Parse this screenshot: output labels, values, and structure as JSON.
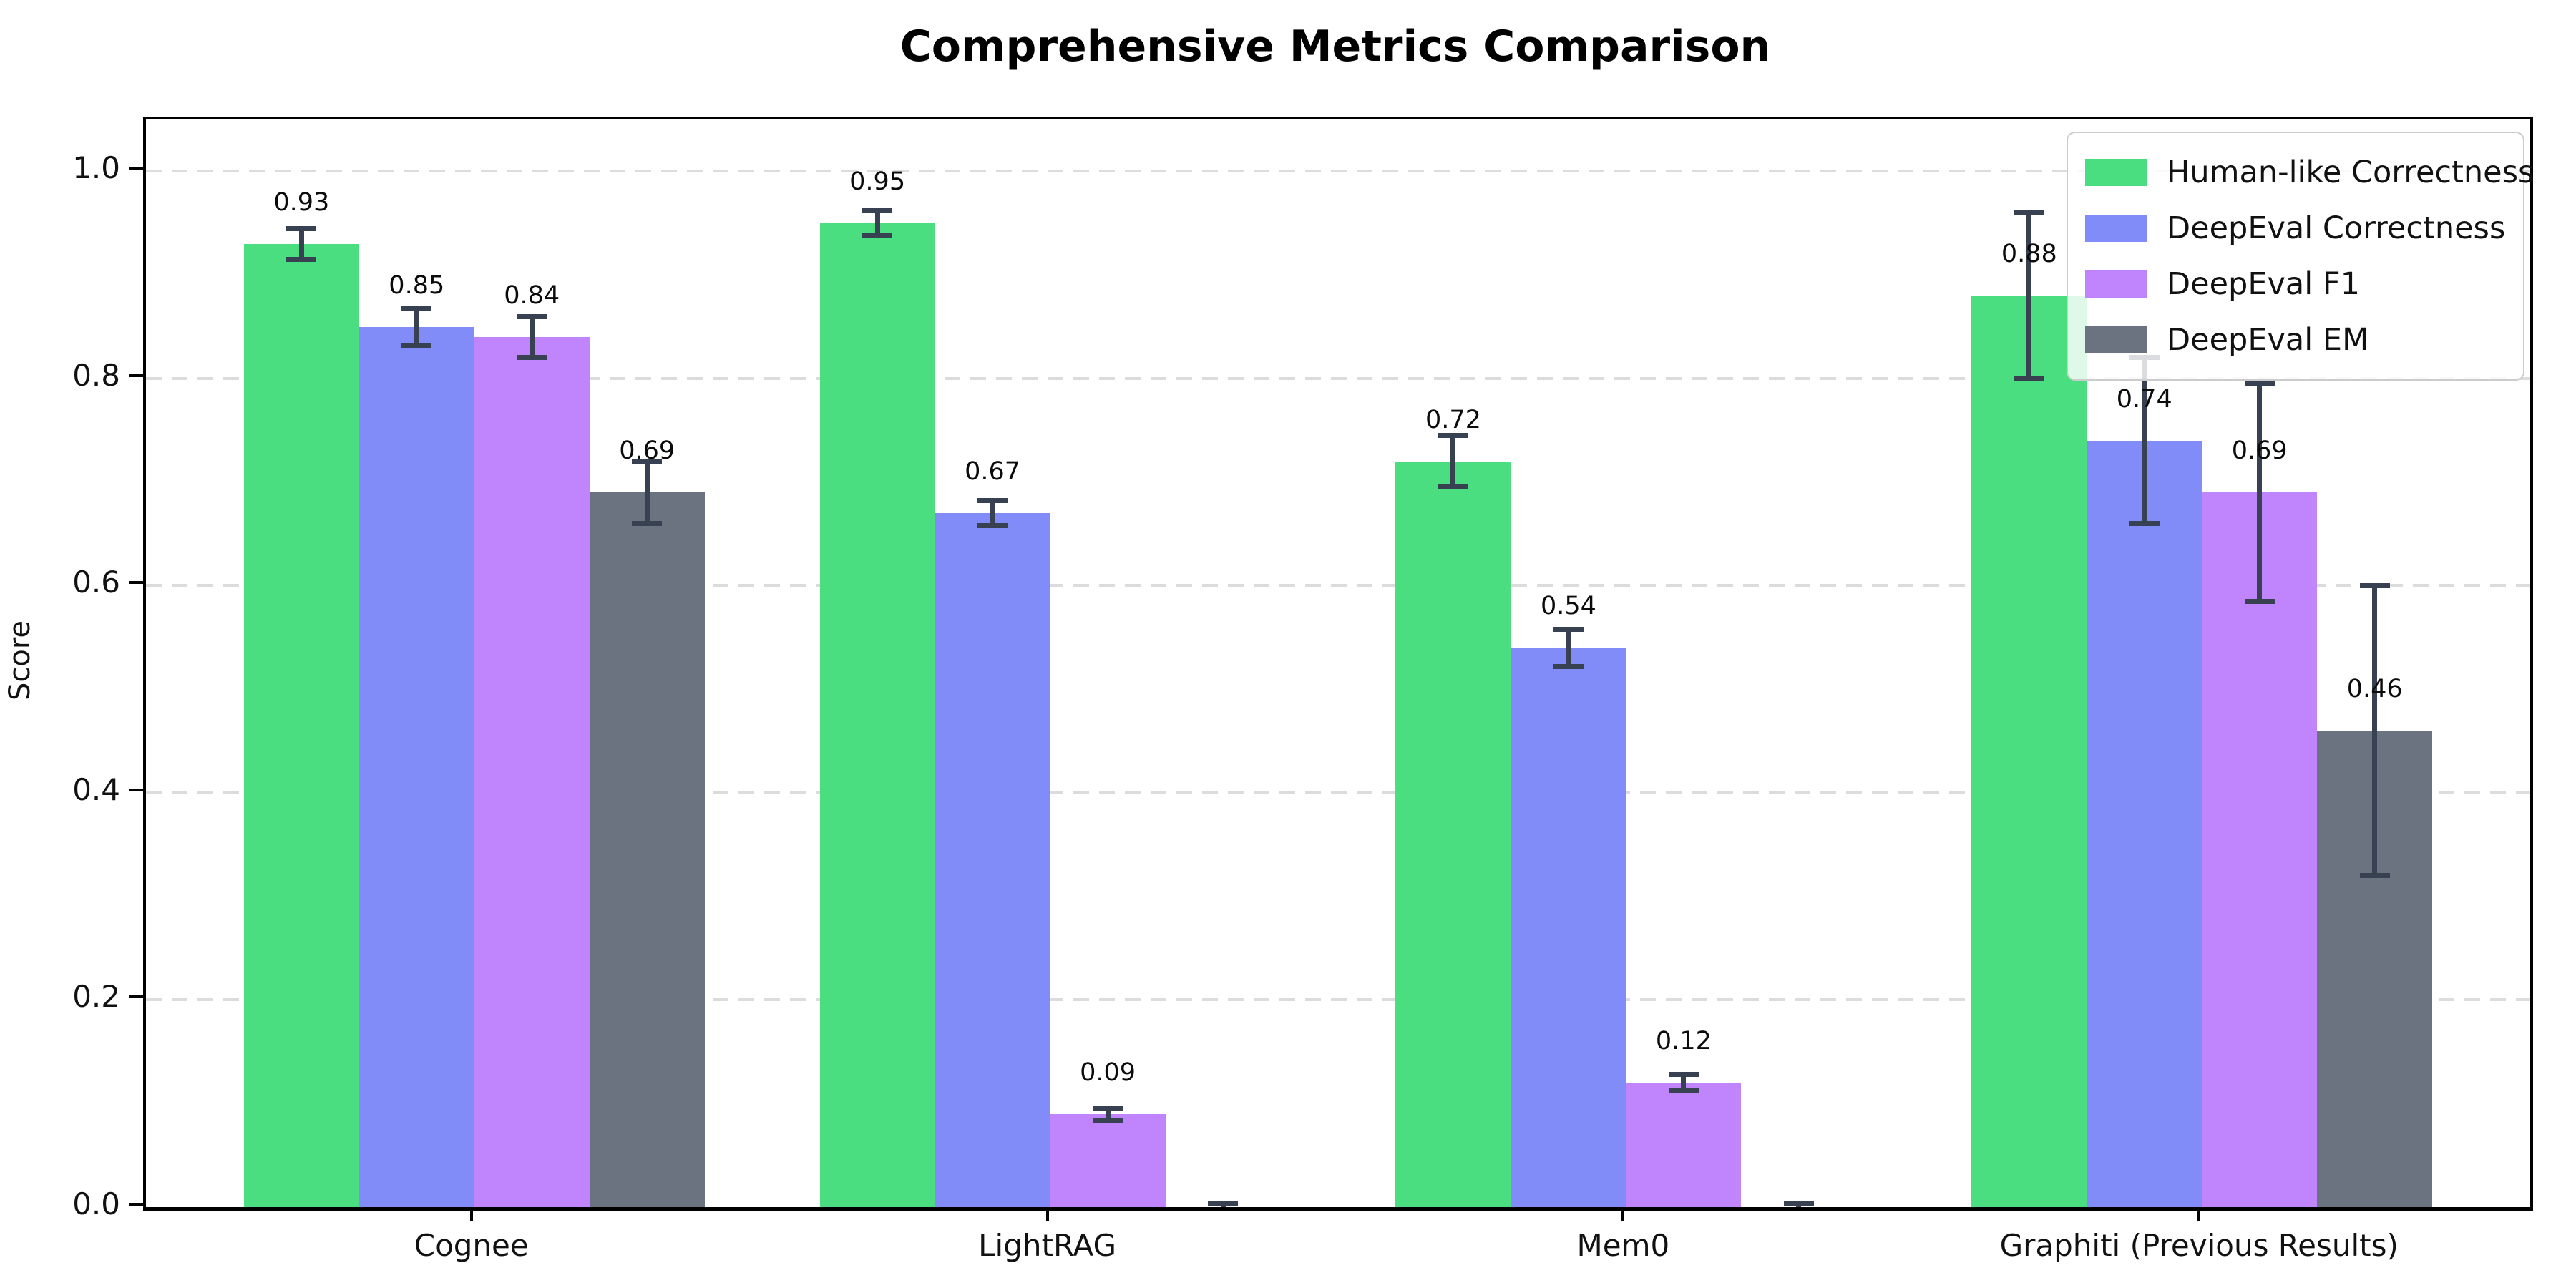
{
  "chart_data": {
    "type": "bar",
    "title": "Comprehensive Metrics Comparison",
    "xlabel": "",
    "ylabel": "Score",
    "ylim": [
      0,
      1.05
    ],
    "yticks": [
      0.0,
      0.2,
      0.4,
      0.6,
      0.8,
      1.0
    ],
    "ytick_labels": [
      "0.0",
      "0.2",
      "0.4",
      "0.6",
      "0.8",
      "1.0"
    ],
    "grid": "horizontal-dashed",
    "legend_position": "upper right",
    "categories": [
      "Cognee",
      "LightRAG",
      "Mem0",
      "Graphiti (Previous Results)"
    ],
    "series": [
      {
        "name": "Human-like Correctness",
        "color": "#4ade80",
        "values": [
          0.93,
          0.95,
          0.72,
          0.88
        ],
        "errors": [
          0.015,
          0.012,
          0.025,
          0.08
        ],
        "labels": [
          "0.93",
          "0.95",
          "0.72",
          "0.88"
        ]
      },
      {
        "name": "DeepEval Correctness",
        "color": "#818cf8",
        "values": [
          0.85,
          0.67,
          0.54,
          0.74
        ],
        "errors": [
          0.018,
          0.012,
          0.018,
          0.08
        ],
        "labels": [
          "0.85",
          "0.67",
          "0.54",
          "0.74"
        ]
      },
      {
        "name": "DeepEval F1",
        "color": "#c084fc",
        "values": [
          0.84,
          0.09,
          0.12,
          0.69
        ],
        "errors": [
          0.02,
          0.006,
          0.008,
          0.105
        ],
        "labels": [
          "0.84",
          "0.09",
          "0.12",
          "0.69"
        ]
      },
      {
        "name": "DeepEval EM",
        "color": "#6b7280",
        "values": [
          0.69,
          0.0,
          0.0,
          0.46
        ],
        "errors": [
          0.03,
          0.004,
          0.004,
          0.14
        ],
        "labels": [
          "0.69",
          "",
          "",
          "0.46"
        ]
      }
    ],
    "error_bar_color": "#374151"
  }
}
